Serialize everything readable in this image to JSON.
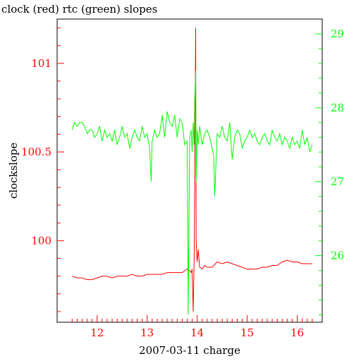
{
  "chart_data": {
    "type": "line",
    "title": "clock (red) rtc (green) slopes",
    "xlabel": "2007-03-11 charge",
    "ylabel": "clockslope",
    "xlim": [
      11.2,
      16.5
    ],
    "x_ticks": [
      12,
      13,
      14,
      15,
      16
    ],
    "x_tick_labels": [
      "12",
      "13",
      "14",
      "15",
      "16"
    ],
    "y_left": {
      "ylim": [
        99.54,
        101.25
      ],
      "ticks": [
        100,
        100.5,
        101
      ],
      "tick_labels": [
        "100",
        "100.5",
        "101"
      ],
      "color": "#ff0000"
    },
    "y_right": {
      "ylim": [
        25.1,
        29.2
      ],
      "ticks": [
        26,
        27,
        28,
        29
      ],
      "tick_labels": [
        "26",
        "27",
        "28",
        "29"
      ],
      "color": "#00ff00"
    },
    "grid": false,
    "series": [
      {
        "name": "clock",
        "axis": "left",
        "color": "#ff0000",
        "x": [
          11.5,
          11.6,
          11.7,
          11.8,
          11.9,
          12.0,
          12.1,
          12.2,
          12.3,
          12.4,
          12.5,
          12.6,
          12.7,
          12.8,
          12.9,
          13.0,
          13.1,
          13.2,
          13.3,
          13.4,
          13.5,
          13.6,
          13.7,
          13.75,
          13.8,
          13.85,
          13.88,
          13.9,
          13.92,
          13.94,
          13.95,
          13.97,
          13.98,
          14.0,
          14.02,
          14.05,
          14.1,
          14.15,
          14.2,
          14.3,
          14.4,
          14.5,
          14.6,
          14.7,
          14.8,
          14.9,
          15.0,
          15.1,
          15.2,
          15.3,
          15.4,
          15.5,
          15.6,
          15.7,
          15.8,
          15.9,
          16.0,
          16.1,
          16.2,
          16.3
        ],
        "values": [
          99.8,
          99.79,
          99.79,
          99.78,
          99.78,
          99.79,
          99.8,
          99.8,
          99.79,
          99.8,
          99.8,
          99.8,
          99.81,
          99.8,
          99.8,
          99.81,
          99.81,
          99.81,
          99.81,
          99.82,
          99.82,
          99.82,
          99.82,
          99.83,
          99.84,
          99.83,
          99.82,
          99.84,
          99.6,
          99.9,
          100.3,
          101.2,
          100.0,
          99.88,
          99.95,
          99.85,
          99.84,
          99.86,
          99.85,
          99.85,
          99.88,
          99.87,
          99.88,
          99.87,
          99.86,
          99.85,
          99.84,
          99.84,
          99.84,
          99.85,
          99.85,
          99.86,
          99.86,
          99.88,
          99.89,
          99.88,
          99.88,
          99.87,
          99.87,
          99.87
        ]
      },
      {
        "name": "rtc",
        "axis": "right",
        "color": "#00ff00",
        "x": [
          11.5,
          11.55,
          11.6,
          11.65,
          11.7,
          11.75,
          11.8,
          11.85,
          11.9,
          11.95,
          12.0,
          12.05,
          12.1,
          12.15,
          12.2,
          12.25,
          12.3,
          12.35,
          12.4,
          12.45,
          12.5,
          12.55,
          12.6,
          12.65,
          12.7,
          12.75,
          12.8,
          12.85,
          12.9,
          12.95,
          13.0,
          13.05,
          13.08,
          13.1,
          13.15,
          13.2,
          13.25,
          13.3,
          13.35,
          13.4,
          13.45,
          13.5,
          13.55,
          13.6,
          13.65,
          13.7,
          13.75,
          13.8,
          13.82,
          13.85,
          13.88,
          13.9,
          13.92,
          13.94,
          13.95,
          13.97,
          13.98,
          14.0,
          14.02,
          14.05,
          14.1,
          14.15,
          14.2,
          14.25,
          14.3,
          14.33,
          14.35,
          14.4,
          14.45,
          14.5,
          14.55,
          14.6,
          14.65,
          14.7,
          14.75,
          14.8,
          14.85,
          14.9,
          14.95,
          15.0,
          15.05,
          15.1,
          15.15,
          15.2,
          15.25,
          15.3,
          15.35,
          15.4,
          15.45,
          15.5,
          15.55,
          15.6,
          15.65,
          15.7,
          15.75,
          15.8,
          15.85,
          15.9,
          15.95,
          16.0,
          16.05,
          16.1,
          16.15,
          16.2,
          16.25,
          16.3
        ],
        "values": [
          27.7,
          27.8,
          27.75,
          27.8,
          27.8,
          27.75,
          27.65,
          27.7,
          27.7,
          27.6,
          27.65,
          27.75,
          27.55,
          27.7,
          27.6,
          27.65,
          27.55,
          27.7,
          27.5,
          27.6,
          27.75,
          27.6,
          27.65,
          27.45,
          27.6,
          27.7,
          27.6,
          27.55,
          27.75,
          27.6,
          27.65,
          27.45,
          27.0,
          27.55,
          27.7,
          27.6,
          27.65,
          27.9,
          27.6,
          27.95,
          27.8,
          27.75,
          27.9,
          27.6,
          27.85,
          27.8,
          27.5,
          27.55,
          25.2,
          27.6,
          27.7,
          27.4,
          27.8,
          27.5,
          28.1,
          28.5,
          27.0,
          27.7,
          27.5,
          27.75,
          27.5,
          27.65,
          27.7,
          27.6,
          27.45,
          27.35,
          26.8,
          27.65,
          27.6,
          27.75,
          27.6,
          27.55,
          27.8,
          27.3,
          27.6,
          27.7,
          27.65,
          27.45,
          27.55,
          27.6,
          27.7,
          27.6,
          27.65,
          27.55,
          27.5,
          27.6,
          27.65,
          27.55,
          27.5,
          27.7,
          27.6,
          27.55,
          27.65,
          27.5,
          27.6,
          27.55,
          27.45,
          27.6,
          27.5,
          27.55,
          27.45,
          27.7,
          27.5,
          27.6,
          27.4,
          27.5
        ]
      }
    ]
  }
}
